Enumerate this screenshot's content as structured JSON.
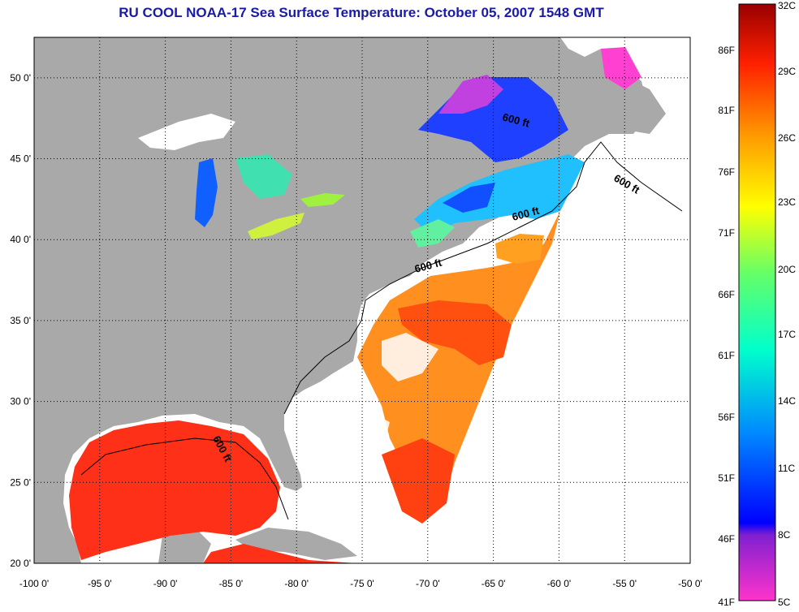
{
  "title": "RU COOL  NOAA-17  Sea Surface Temperature:  October 05, 2007 1548 GMT",
  "map": {
    "lon_ticks": [
      "-100 0'",
      "-95 0'",
      "-90 0'",
      "-85 0'",
      "-80 0'",
      "-75 0'",
      "-70 0'",
      "-65 0'",
      "-60 0'",
      "-55 0'",
      "-50 0'"
    ],
    "lat_ticks": [
      "20 0'",
      "25 0'",
      "30 0'",
      "35 0'",
      "40 0'",
      "45 0'",
      "50 0'"
    ],
    "lon_range": [
      -100,
      -50
    ],
    "lat_range": [
      20,
      52.5
    ],
    "gridlines": true,
    "contour_labels": [
      "600 ft",
      "600 ft",
      "600 ft",
      "600 ft",
      "600 ft"
    ],
    "colors": {
      "land": "#a9a9a9",
      "water_no_data": "#ffffff"
    }
  },
  "colorbar": {
    "f_labels": [
      "86F",
      "81F",
      "76F",
      "71F",
      "66F",
      "61F",
      "56F",
      "51F",
      "46F",
      "41F"
    ],
    "c_labels": [
      "32C",
      "29C",
      "26C",
      "23C",
      "20C",
      "17C",
      "14C",
      "11C",
      "8C",
      "5C"
    ],
    "range_c": [
      5,
      32
    ]
  }
}
